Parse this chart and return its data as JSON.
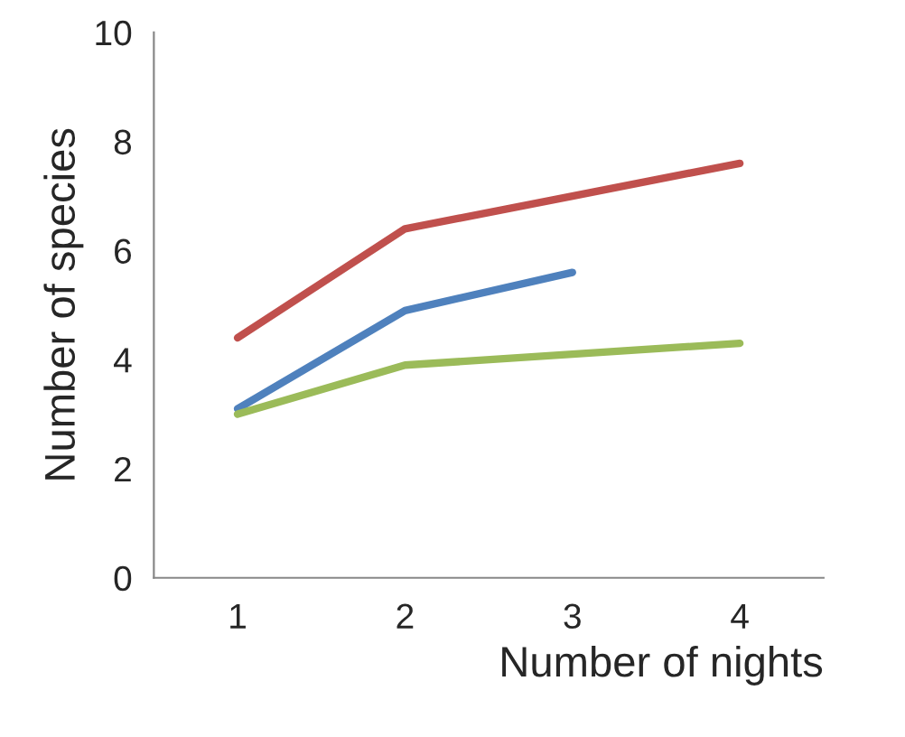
{
  "chart_data": {
    "type": "line",
    "xlabel": "Number of nights",
    "ylabel": "Number of species",
    "categories": [
      "1",
      "2",
      "3",
      "4"
    ],
    "series": [
      {
        "color": "#c0504d",
        "values": [
          4.4,
          6.4,
          7.0,
          7.6
        ]
      },
      {
        "color": "#4f81bd",
        "values": [
          3.1,
          4.9,
          5.6,
          null
        ]
      },
      {
        "color": "#9bbb59",
        "values": [
          3.0,
          3.9,
          4.1,
          4.3
        ]
      }
    ],
    "ylim": [
      0,
      10
    ],
    "yticks": [
      0,
      2,
      4,
      6,
      8,
      10
    ],
    "grid": false,
    "marker": "none",
    "line_style": "solid"
  }
}
